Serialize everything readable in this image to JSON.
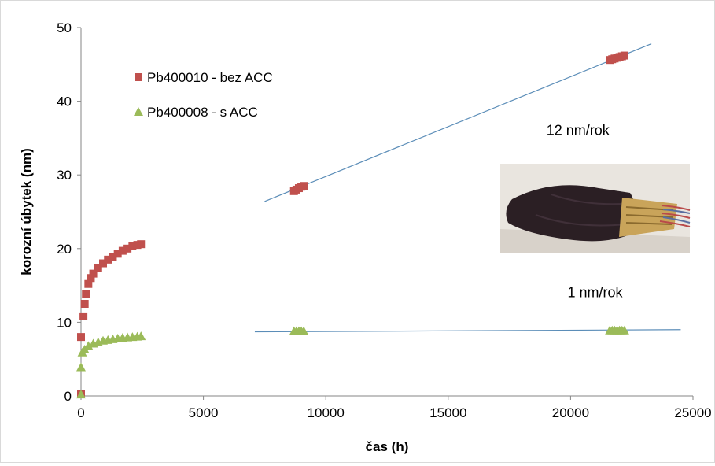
{
  "chart_data": {
    "type": "scatter",
    "title": "",
    "xlabel": "čas (h)",
    "ylabel": "korozní úbytek (nm)",
    "xlim": [
      0,
      25000
    ],
    "ylim": [
      0,
      50
    ],
    "x_ticks": [
      0,
      5000,
      10000,
      15000,
      20000,
      25000
    ],
    "y_ticks": [
      0,
      10,
      20,
      30,
      40,
      50
    ],
    "grid": false,
    "legend": "top-left",
    "series": [
      {
        "name": "Pb400010 - bez ACC",
        "marker": "square",
        "color": "#c0504d",
        "points": [
          [
            0,
            0.3
          ],
          [
            0,
            8
          ],
          [
            100,
            10.8
          ],
          [
            150,
            12.5
          ],
          [
            200,
            13.8
          ],
          [
            300,
            15.2
          ],
          [
            400,
            16.0
          ],
          [
            500,
            16.6
          ],
          [
            700,
            17.4
          ],
          [
            900,
            18.0
          ],
          [
            1100,
            18.5
          ],
          [
            1300,
            18.9
          ],
          [
            1500,
            19.3
          ],
          [
            1700,
            19.7
          ],
          [
            1900,
            20.0
          ],
          [
            2100,
            20.3
          ],
          [
            2300,
            20.5
          ],
          [
            2450,
            20.6
          ],
          [
            8700,
            27.8
          ],
          [
            8800,
            28.0
          ],
          [
            8900,
            28.2
          ],
          [
            9000,
            28.4
          ],
          [
            9100,
            28.5
          ],
          [
            21600,
            45.6
          ],
          [
            21700,
            45.7
          ],
          [
            21800,
            45.8
          ],
          [
            21900,
            45.9
          ],
          [
            22000,
            46.0
          ],
          [
            22100,
            46.1
          ],
          [
            22200,
            46.2
          ]
        ]
      },
      {
        "name": "Pb400008 - s ACC",
        "marker": "triangle",
        "color": "#9bbb59",
        "points": [
          [
            0,
            0.2
          ],
          [
            0,
            3.9
          ],
          [
            50,
            5.9
          ],
          [
            150,
            6.3
          ],
          [
            300,
            6.8
          ],
          [
            500,
            7.1
          ],
          [
            700,
            7.3
          ],
          [
            900,
            7.5
          ],
          [
            1100,
            7.6
          ],
          [
            1300,
            7.7
          ],
          [
            1500,
            7.8
          ],
          [
            1700,
            7.9
          ],
          [
            1900,
            7.95
          ],
          [
            2100,
            8.0
          ],
          [
            2300,
            8.05
          ],
          [
            2450,
            8.1
          ],
          [
            8700,
            8.8
          ],
          [
            8800,
            8.8
          ],
          [
            8900,
            8.8
          ],
          [
            9000,
            8.8
          ],
          [
            9100,
            8.8
          ],
          [
            21600,
            8.9
          ],
          [
            21700,
            8.9
          ],
          [
            21800,
            8.9
          ],
          [
            21900,
            8.9
          ],
          [
            22000,
            8.9
          ],
          [
            22100,
            8.9
          ],
          [
            22200,
            8.9
          ]
        ]
      }
    ],
    "trendlines": [
      {
        "color": "#5b8db8",
        "from": [
          7500,
          26.4
        ],
        "to": [
          23300,
          47.8
        ]
      },
      {
        "color": "#5b8db8",
        "from": [
          7100,
          8.7
        ],
        "to": [
          24500,
          9.0
        ]
      }
    ],
    "annotations": [
      {
        "text": "12 nm/rok",
        "x": 20300,
        "y": 35.4
      },
      {
        "text": "1 nm/rok",
        "x": 21000,
        "y": 13.4
      }
    ]
  },
  "photo": {
    "name": "sensor-in-fabric-pouch",
    "bg": "#e9e5df",
    "cloth": "#2b1f24"
  }
}
